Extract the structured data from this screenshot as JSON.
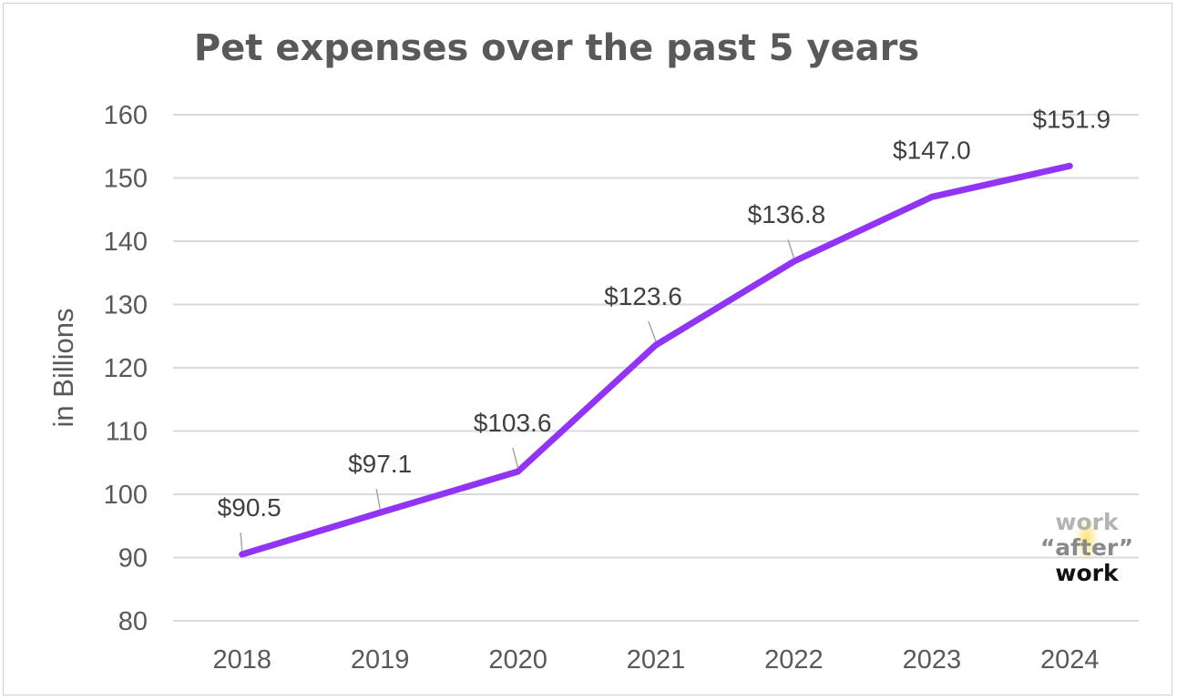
{
  "chart_data": {
    "type": "line",
    "title": "Pet expenses over the past 5 years",
    "xlabel": "",
    "ylabel": "in Billions",
    "categories": [
      "2018",
      "2019",
      "2020",
      "2021",
      "2022",
      "2023",
      "2024"
    ],
    "values": [
      90.5,
      97.1,
      103.6,
      123.6,
      136.8,
      147.0,
      151.9
    ],
    "data_labels": [
      "$90.5",
      "$97.1",
      "$103.6",
      "$123.6",
      "$136.8",
      "$147.0",
      "$151.9"
    ],
    "ylim": [
      80,
      160
    ],
    "yticks": [
      "80",
      "90",
      "100",
      "110",
      "120",
      "130",
      "140",
      "150",
      "160"
    ],
    "grid": true,
    "line_color": "#9234f5",
    "grid_color": "#d9d9d9"
  },
  "watermark": {
    "line1": "work",
    "line2": "“after”",
    "line3": "work"
  }
}
